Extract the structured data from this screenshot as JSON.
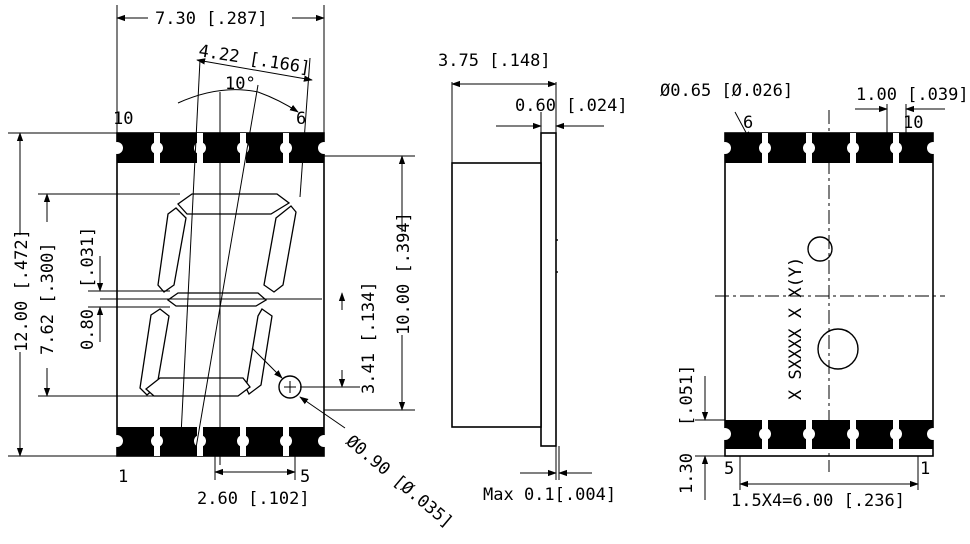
{
  "front_view": {
    "width_dim": "7.30 [.287]",
    "digit_width_dim": "4.22 [.166]",
    "slant_angle": "10°",
    "height_dim": "12.00 [.472]",
    "digit_height_dim": "7.62 [.300]",
    "seg_offset_dim": "[.031]",
    "seg_width_dim": "0.80",
    "pin_span_dim": "10.00 [.394]",
    "dp_offset_dim": "3.41 [.134]",
    "dp_dia_dim": "Ø0.90 [Ø.035]",
    "pin_pitch_dim": "2.60 [.102]",
    "pin_10": "10",
    "pin_6": "6",
    "pin_1": "1",
    "pin_5": "5"
  },
  "side_view": {
    "depth_dim": "3.75 [.148]",
    "plate_dim": "0.60 [.024]",
    "tolerance_dim": "Max  0.1[.004]"
  },
  "back_view": {
    "hole_dim": "Ø0.65 [Ø.026]",
    "pad_width_dim": "1.00 [.039]",
    "pin_6": "6",
    "pin_10": "10",
    "pin_5": "5",
    "pin_1": "1",
    "part_marking": "X SXXXX X X(Y)",
    "pad_height_dim_top": "[.051]",
    "pad_height_dim_bottom": "1.30",
    "pitch_total_dim": "1.5X4=6.00 [.236]"
  }
}
